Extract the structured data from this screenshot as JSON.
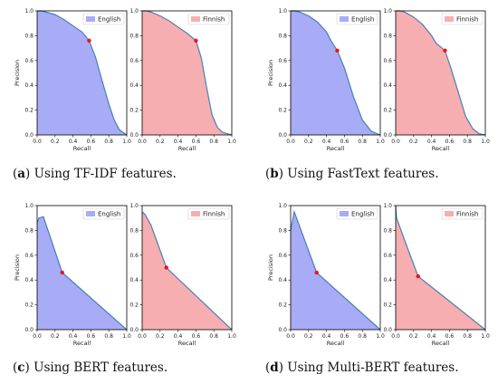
{
  "captions": [
    {
      "letter": "a",
      "text": ") Using TF-IDF features."
    },
    {
      "letter": "b",
      "text": ") Using FastText features."
    },
    {
      "letter": "c",
      "text": ") Using BERT features."
    },
    {
      "letter": "d",
      "text": ") Using Multi-BERT features."
    }
  ],
  "colors": {
    "english_fill": "#a8abf5",
    "finnish_fill": "#f6aeb0",
    "line": "#4a7fb5",
    "marker": "#e8141a"
  },
  "chart_data": [
    {
      "type": "area",
      "panel": "a",
      "xlabel": "Recall",
      "ylabel": "Precision",
      "xlim": [
        0,
        1
      ],
      "ylim": [
        0,
        1
      ],
      "xticks": [
        "0.0",
        "0.2",
        "0.4",
        "0.6",
        "0.8",
        "1.0"
      ],
      "yticks": [
        "0.0",
        "0.2",
        "0.4",
        "0.6",
        "0.8",
        "1.0"
      ],
      "legend": "English",
      "legend_position": "top-right",
      "x": [
        0,
        0.05,
        0.1,
        0.2,
        0.3,
        0.4,
        0.5,
        0.58,
        0.65,
        0.72,
        0.8,
        0.86,
        0.92,
        1.0
      ],
      "y": [
        1.0,
        1.0,
        0.99,
        0.97,
        0.93,
        0.88,
        0.83,
        0.76,
        0.63,
        0.45,
        0.25,
        0.12,
        0.04,
        0.0
      ],
      "marker": [
        0.58,
        0.76
      ]
    },
    {
      "type": "area",
      "panel": "a",
      "xlabel": "Recall",
      "ylabel": "",
      "xlim": [
        0,
        1
      ],
      "ylim": [
        0,
        1
      ],
      "xticks": [
        "0.0",
        "0.2",
        "0.4",
        "0.6",
        "0.8",
        "1.0"
      ],
      "yticks": [
        "0.0",
        "0.2",
        "0.4",
        "0.6",
        "0.8",
        "1.0"
      ],
      "legend": "Finnish",
      "legend_position": "top-right",
      "x": [
        0,
        0.05,
        0.1,
        0.2,
        0.3,
        0.4,
        0.5,
        0.6,
        0.66,
        0.72,
        0.78,
        0.84,
        0.9,
        1.0
      ],
      "y": [
        1.0,
        1.0,
        0.99,
        0.96,
        0.92,
        0.87,
        0.82,
        0.76,
        0.62,
        0.38,
        0.16,
        0.06,
        0.02,
        0.0
      ],
      "marker": [
        0.6,
        0.76
      ]
    },
    {
      "type": "area",
      "panel": "b",
      "xlabel": "Recall",
      "ylabel": "Precision",
      "xlim": [
        0,
        1
      ],
      "ylim": [
        0,
        1
      ],
      "xticks": [
        "0.0",
        "0.2",
        "0.4",
        "0.6",
        "0.8",
        "1.0"
      ],
      "yticks": [
        "0.0",
        "0.2",
        "0.4",
        "0.6",
        "0.8",
        "1.0"
      ],
      "legend": "English",
      "legend_position": "top-right",
      "x": [
        0,
        0.05,
        0.1,
        0.2,
        0.3,
        0.4,
        0.45,
        0.52,
        0.6,
        0.7,
        0.8,
        0.9,
        1.0
      ],
      "y": [
        1.0,
        1.0,
        0.99,
        0.96,
        0.91,
        0.83,
        0.76,
        0.68,
        0.54,
        0.31,
        0.12,
        0.03,
        0.0
      ],
      "marker": [
        0.52,
        0.68
      ]
    },
    {
      "type": "area",
      "panel": "b",
      "xlabel": "Recall",
      "ylabel": "",
      "xlim": [
        0,
        1
      ],
      "ylim": [
        0,
        1
      ],
      "xticks": [
        "0.0",
        "0.2",
        "0.4",
        "0.6",
        "0.8",
        "1.0"
      ],
      "yticks": [
        "0.0",
        "0.2",
        "0.4",
        "0.6",
        "0.8",
        "1.0"
      ],
      "legend": "Finnish",
      "legend_position": "top-right",
      "x": [
        0,
        0.05,
        0.1,
        0.2,
        0.3,
        0.4,
        0.45,
        0.55,
        0.62,
        0.7,
        0.78,
        0.86,
        0.93,
        1.0
      ],
      "y": [
        1.0,
        1.0,
        0.99,
        0.95,
        0.89,
        0.8,
        0.74,
        0.68,
        0.53,
        0.34,
        0.15,
        0.05,
        0.01,
        0.0
      ],
      "marker": [
        0.55,
        0.68
      ]
    },
    {
      "type": "area",
      "panel": "c",
      "xlabel": "Recall",
      "ylabel": "Precision",
      "xlim": [
        0,
        1
      ],
      "ylim": [
        0,
        1
      ],
      "xticks": [
        "0.0",
        "0.2",
        "0.4",
        "0.6",
        "0.8",
        "1.0"
      ],
      "yticks": [
        "0.0",
        "0.2",
        "0.4",
        "0.6",
        "0.8",
        "1.0"
      ],
      "legend": "English",
      "legend_position": "top-right",
      "x": [
        0,
        0.02,
        0.07,
        0.28,
        1.0
      ],
      "y": [
        0.86,
        0.9,
        0.91,
        0.46,
        0.0
      ],
      "marker": [
        0.28,
        0.46
      ]
    },
    {
      "type": "area",
      "panel": "c",
      "xlabel": "Recall",
      "ylabel": "",
      "xlim": [
        0,
        1
      ],
      "ylim": [
        0,
        1
      ],
      "xticks": [
        "0.0",
        "0.2",
        "0.4",
        "0.6",
        "0.8",
        "1.0"
      ],
      "yticks": [
        "0.0",
        "0.2",
        "0.4",
        "0.6",
        "0.8",
        "1.0"
      ],
      "legend": "Finnish",
      "legend_position": "top-right",
      "x": [
        0,
        0.03,
        0.1,
        0.27,
        1.0
      ],
      "y": [
        0.95,
        0.93,
        0.84,
        0.5,
        0.0
      ],
      "marker": [
        0.27,
        0.5
      ]
    },
    {
      "type": "area",
      "panel": "d",
      "xlabel": "Recall",
      "ylabel": "Precision",
      "xlim": [
        0,
        1
      ],
      "ylim": [
        0,
        1
      ],
      "xticks": [
        "0.0",
        "0.2",
        "0.4",
        "0.6",
        "0.8",
        "1.0"
      ],
      "yticks": [
        "0.0",
        "0.2",
        "0.4",
        "0.6",
        "0.8",
        "1.0"
      ],
      "legend": "English",
      "legend_position": "top-right",
      "x": [
        0,
        0.04,
        0.29,
        1.0
      ],
      "y": [
        0.8,
        0.95,
        0.46,
        0.0
      ],
      "marker": [
        0.29,
        0.46
      ]
    },
    {
      "type": "area",
      "panel": "d",
      "xlabel": "Recall",
      "ylabel": "",
      "xlim": [
        0,
        1
      ],
      "ylim": [
        0,
        1
      ],
      "xticks": [
        "0.0",
        "0.2",
        "0.4",
        "0.6",
        "0.8",
        "1.0"
      ],
      "yticks": [
        "0.0",
        "0.2",
        "0.4",
        "0.6",
        "0.8",
        "1.0"
      ],
      "legend": "Finnish",
      "legend_position": "top-right",
      "x": [
        0,
        0.01,
        0.1,
        0.25,
        1.0
      ],
      "y": [
        1.0,
        0.9,
        0.72,
        0.43,
        0.0
      ],
      "marker": [
        0.25,
        0.43
      ]
    }
  ]
}
